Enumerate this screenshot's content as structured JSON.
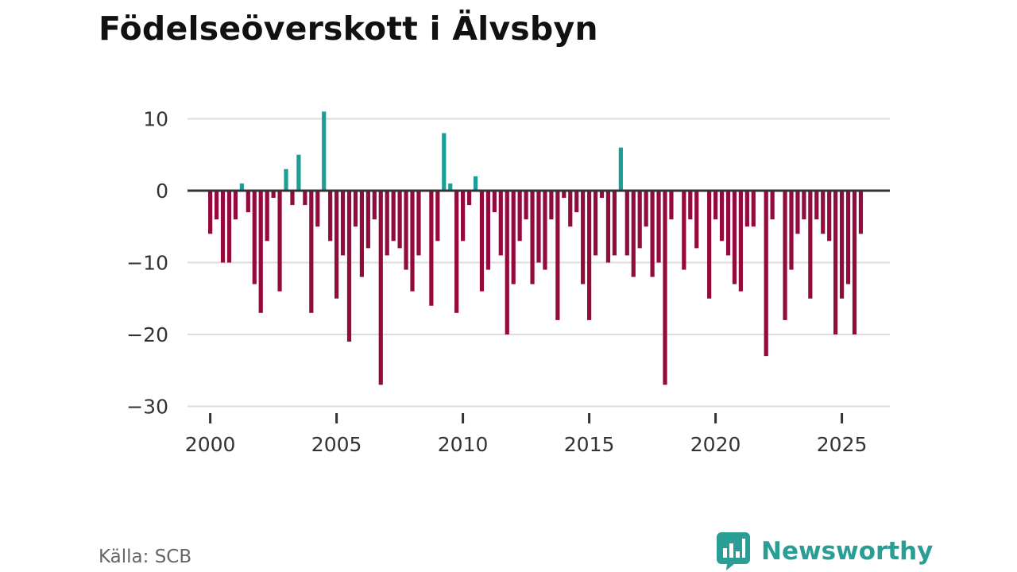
{
  "title": "Födelseöverskott i Älvsbyn",
  "source": "Källa: SCB",
  "brand": {
    "name": "Newsworthy",
    "logo_icon": "newsworthy-chart-bubble-icon"
  },
  "colors": {
    "positive": "#1a9e96",
    "negative": "#930a3c",
    "grid": "#dddddd",
    "zero_line": "#333333",
    "brand": "#2a9d95"
  },
  "chart_data": {
    "type": "bar",
    "title": "Födelseöverskott i Älvsbyn",
    "xlabel": "",
    "ylabel": "",
    "x_start": 2000.0,
    "x_step": 0.25,
    "xlim": [
      1999.1,
      2026.9
    ],
    "ylim": [
      -30,
      13
    ],
    "yticks": [
      10,
      0,
      -10,
      -20,
      -30
    ],
    "ytick_labels": [
      "10",
      "0",
      "−10",
      "−20",
      "−30"
    ],
    "xticks": [
      2000,
      2005,
      2010,
      2015,
      2020,
      2025
    ],
    "xtick_labels": [
      "2000",
      "2005",
      "2010",
      "2015",
      "2020",
      "2025"
    ],
    "grid": true,
    "values": [
      -6,
      -4,
      -10,
      -10,
      -4,
      1,
      -3,
      -13,
      -17,
      -7,
      -1,
      -14,
      3,
      -2,
      5,
      -2,
      -17,
      -5,
      11,
      -7,
      -15,
      -9,
      -21,
      -5,
      -12,
      -8,
      -4,
      -27,
      -9,
      -7,
      -8,
      -11,
      -14,
      -9,
      0,
      -16,
      -7,
      8,
      1,
      -17,
      -7,
      -2,
      2,
      -14,
      -11,
      -3,
      -9,
      -20,
      -13,
      -7,
      -4,
      -13,
      -10,
      -11,
      -4,
      -18,
      -1,
      -5,
      -3,
      -13,
      -18,
      -9,
      -1,
      -10,
      -9,
      6,
      -9,
      -12,
      -8,
      -5,
      -12,
      -10,
      -27,
      -4,
      0,
      -11,
      -4,
      -8,
      0,
      -15,
      -4,
      -7,
      -9,
      -13,
      -14,
      -5,
      -5,
      0,
      -23,
      -4,
      0,
      -18,
      -11,
      -6,
      -4,
      -15,
      -4,
      -6,
      -7,
      -20,
      -15,
      -13,
      -20,
      -6
    ]
  }
}
